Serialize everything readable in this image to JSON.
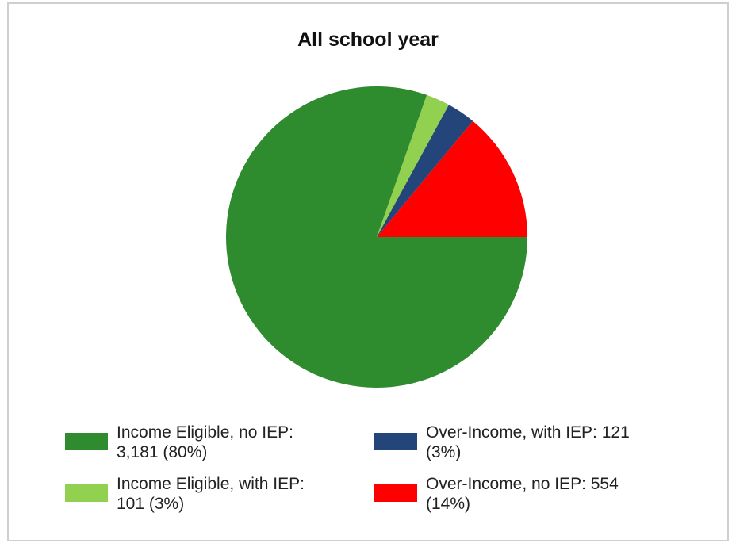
{
  "chart_data": {
    "type": "pie",
    "title": "All school year",
    "slices": [
      {
        "label": "Over-Income, no IEP",
        "value": 554,
        "percent": "14%",
        "color": "#ff0000",
        "legend_line1": "Over-Income, no IEP: 554",
        "legend_line2": "(14%)"
      },
      {
        "label": "Over-Income, with IEP",
        "value": 121,
        "percent": "3%",
        "color": "#234579",
        "legend_line1": "Over-Income, with IEP: 121",
        "legend_line2": "(3%)"
      },
      {
        "label": "Income Eligible, with IEP",
        "value": 101,
        "percent": "3%",
        "color": "#92d050",
        "legend_line1": "Income Eligible, with IEP:",
        "legend_line2": "101 (3%)"
      },
      {
        "label": "Income Eligible, no IEP",
        "value": 3181,
        "percent": "80%",
        "color": "#2e8b2e",
        "legend_line1": "Income Eligible, no IEP:",
        "legend_line2": "3,181 (80%)"
      }
    ],
    "start_direction": "east (3 o'clock)",
    "direction": "counterclockwise",
    "legend_position": "bottom"
  }
}
